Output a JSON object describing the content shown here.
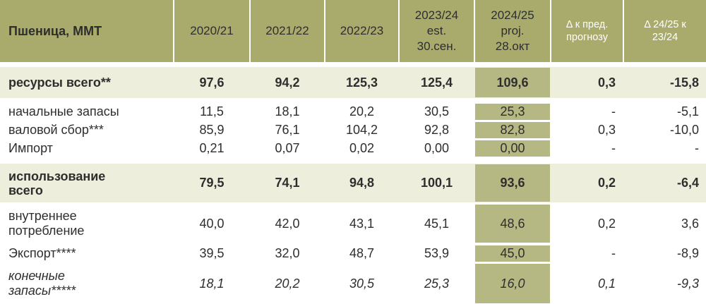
{
  "table": {
    "header": [
      [
        "Пшеница, ММТ"
      ],
      [
        "2020/21"
      ],
      [
        "2021/22"
      ],
      [
        "2022/23"
      ],
      [
        "2023/24",
        "est.",
        "30.сен."
      ],
      [
        "2024/25",
        "proj.",
        "28.окт"
      ],
      [
        "Δ к пред.",
        "прогнозу"
      ],
      [
        "Δ 24/25 к",
        "23/24"
      ]
    ],
    "rows": [
      {
        "label": [
          "ресурсы всего**"
        ],
        "values": [
          "97,6",
          "94,2",
          "125,3",
          "125,4",
          "109,6",
          "0,3",
          "-15,8"
        ]
      },
      {
        "label": [
          "начальные запасы"
        ],
        "values": [
          "11,5",
          "18,1",
          "20,2",
          "30,5",
          "25,3",
          "-",
          "-5,1"
        ]
      },
      {
        "label": [
          "валовой сбор***"
        ],
        "values": [
          "85,9",
          "76,1",
          "104,2",
          "92,8",
          "82,8",
          "0,3",
          "-10,0"
        ]
      },
      {
        "label": [
          "Импорт"
        ],
        "values": [
          "0,21",
          "0,07",
          "0,02",
          "0,00",
          "0,00",
          "-",
          "-"
        ]
      },
      {
        "label": [
          "использование",
          "всего"
        ],
        "values": [
          "79,5",
          "74,1",
          "94,8",
          "100,1",
          "93,6",
          "0,2",
          "-6,4"
        ]
      },
      {
        "label": [
          "внутреннее",
          "потребление"
        ],
        "values": [
          "40,0",
          "42,0",
          "43,1",
          "45,1",
          "48,6",
          "0,2",
          "3,6"
        ]
      },
      {
        "label": [
          "Экспорт****"
        ],
        "values": [
          "39,5",
          "32,0",
          "48,7",
          "53,9",
          "45,0",
          "-",
          "-8,9"
        ]
      },
      {
        "label": [
          "конечные",
          "запасы*****"
        ],
        "values": [
          "18,1",
          "20,2",
          "30,5",
          "25,3",
          "16,0",
          "0,1",
          "-9,3"
        ]
      }
    ]
  }
}
